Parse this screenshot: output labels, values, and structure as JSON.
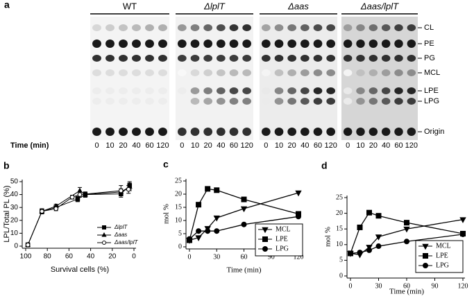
{
  "panel_a": {
    "panel_label": "a",
    "strains": [
      "WT",
      "ΔlplT",
      "Δaas",
      "Δaas/lplT"
    ],
    "spot_labels": [
      "CL",
      "PE",
      "PG",
      "MCL",
      "LPE",
      "LPG",
      "Origin"
    ],
    "time_label": "Time (min)",
    "times": [
      0,
      10,
      20,
      40,
      60,
      120
    ]
  },
  "chart_data": [
    {
      "type": "line",
      "panel_label": "b",
      "x_label": "Survival cells (%)",
      "y_label": "LPL/Total PL (%)",
      "xlim": [
        100,
        0
      ],
      "xticks": [
        100,
        80,
        60,
        40,
        20,
        0
      ],
      "ylim": [
        0,
        50
      ],
      "yticks": [
        0,
        10,
        20,
        30,
        40,
        50
      ],
      "legend": "lower right",
      "series": [
        {
          "name": "ΔlplT",
          "color": "#000000",
          "marker": "square",
          "filled": true,
          "x": [
            98,
            85,
            72,
            52,
            45,
            12,
            4
          ],
          "values": [
            1,
            27,
            30,
            36.5,
            40,
            40.5,
            47
          ],
          "errors": [
            1.5,
            2,
            1.5,
            2,
            2,
            2.5,
            3
          ]
        },
        {
          "name": "Δaas",
          "color": "#000000",
          "marker": "triangle",
          "filled": true,
          "x": [
            98,
            85,
            72,
            50,
            45,
            12,
            4
          ],
          "values": [
            1,
            27,
            31,
            43,
            40,
            42,
            46
          ],
          "errors": [
            1.5,
            1.5,
            1.5,
            2.5,
            2,
            2.5,
            3
          ]
        },
        {
          "name": "Δaas/lplT",
          "color": "#000000",
          "marker": "circle",
          "filled": false,
          "x": [
            98,
            85,
            72,
            57,
            50,
            12,
            5
          ],
          "values": [
            1,
            27,
            29,
            38,
            40,
            43,
            44
          ],
          "errors": [
            1.5,
            1.5,
            1.5,
            1.5,
            2,
            4,
            3
          ]
        }
      ]
    },
    {
      "type": "line",
      "panel_label": "c",
      "x_label": "Time (min)",
      "y_label": "mol %",
      "xlim": [
        0,
        120
      ],
      "xticks": [
        0,
        30,
        60,
        90,
        120
      ],
      "ylim": [
        0,
        25
      ],
      "yticks": [
        0,
        5,
        10,
        15,
        20,
        25
      ],
      "legend": "lower right",
      "series": [
        {
          "name": "MCL",
          "color": "#000000",
          "marker": "triangle-down",
          "filled": true,
          "x": [
            0,
            10,
            20,
            30,
            60,
            120
          ],
          "values": [
            2.5,
            3.5,
            7,
            11,
            14.5,
            20.5
          ]
        },
        {
          "name": "LPE",
          "color": "#000000",
          "marker": "square",
          "filled": true,
          "x": [
            0,
            10,
            20,
            30,
            60,
            120
          ],
          "values": [
            2.5,
            16,
            22,
            21.5,
            18,
            12.5
          ]
        },
        {
          "name": "LPG",
          "color": "#000000",
          "marker": "circle",
          "filled": true,
          "x": [
            0,
            10,
            20,
            30,
            60,
            120
          ],
          "values": [
            3,
            6,
            6,
            6,
            8.5,
            11.5
          ]
        }
      ]
    },
    {
      "type": "line",
      "panel_label": "d",
      "x_label": "Time (min)",
      "y_label": "mol %",
      "xlim": [
        0,
        120
      ],
      "xticks": [
        0,
        30,
        60,
        90,
        120
      ],
      "ylim": [
        0,
        25
      ],
      "yticks": [
        0,
        5,
        10,
        15,
        20,
        25
      ],
      "legend": "lower right",
      "series": [
        {
          "name": "MCL",
          "color": "#000000",
          "marker": "triangle-down",
          "filled": true,
          "x": [
            0,
            10,
            20,
            30,
            60,
            120
          ],
          "values": [
            7.2,
            6.8,
            9.2,
            12.5,
            15,
            18
          ]
        },
        {
          "name": "LPE",
          "color": "#000000",
          "marker": "square",
          "filled": true,
          "x": [
            0,
            10,
            20,
            30,
            60,
            120
          ],
          "values": [
            7.2,
            15.5,
            20.2,
            19.2,
            17,
            13.5
          ]
        },
        {
          "name": "LPG",
          "color": "#000000",
          "marker": "circle",
          "filled": true,
          "x": [
            0,
            10,
            20,
            30,
            60,
            120
          ],
          "values": [
            7.2,
            7.5,
            8.2,
            9.5,
            11,
            13.3
          ]
        }
      ]
    }
  ]
}
